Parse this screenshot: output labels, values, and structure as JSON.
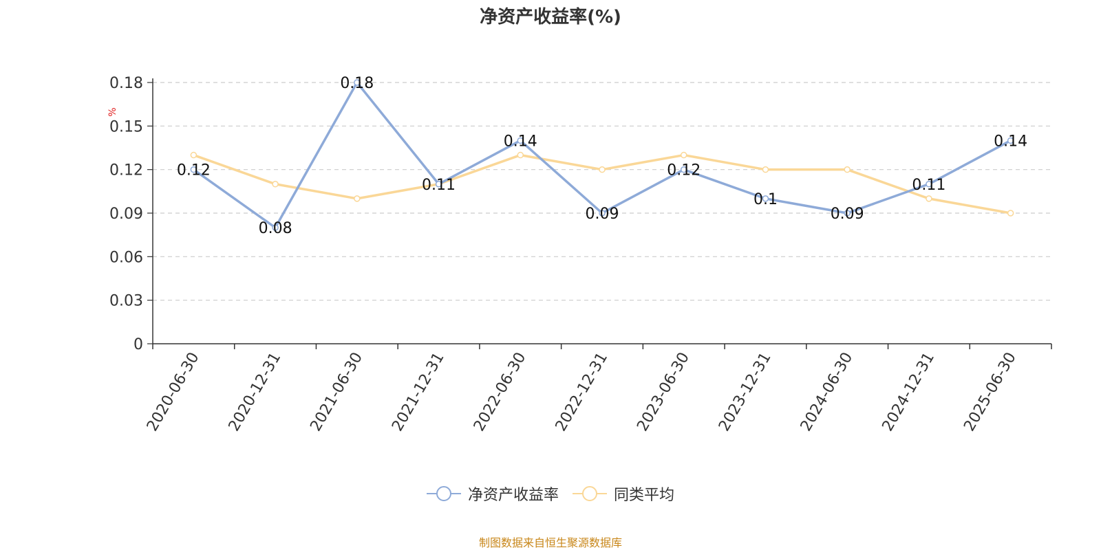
{
  "chart_data": {
    "type": "line",
    "title": "净资产收益率(%)",
    "y_unit": "%",
    "categories": [
      "2020-06-30",
      "2020-12-31",
      "2021-06-30",
      "2021-12-31",
      "2022-06-30",
      "2022-12-31",
      "2023-06-30",
      "2023-12-31",
      "2024-06-30",
      "2024-12-31",
      "2025-06-30"
    ],
    "ylim": [
      0,
      0.18
    ],
    "yticks": [
      "0",
      "0.03",
      "0.06",
      "0.09",
      "0.12",
      "0.15",
      "0.18"
    ],
    "grid": true,
    "legend_position": "bottom-center",
    "series": [
      {
        "name": "净资产收益率",
        "color": "#8eaad8",
        "values": [
          0.12,
          0.08,
          0.18,
          0.11,
          0.14,
          0.09,
          0.12,
          0.1,
          0.09,
          0.11,
          0.14
        ],
        "labels": [
          "0.12",
          "0.08",
          "0.18",
          "0.11",
          "0.14",
          "0.09",
          "0.12",
          "0.1",
          "0.09",
          "0.11",
          "0.14"
        ],
        "show_labels": true
      },
      {
        "name": "同类平均",
        "color": "#fad797",
        "values": [
          0.13,
          0.11,
          0.1,
          0.11,
          0.13,
          0.12,
          0.13,
          0.12,
          0.12,
          0.1,
          0.09
        ],
        "show_labels": false
      }
    ]
  },
  "footer": "制图数据来自恒生聚源数据库"
}
